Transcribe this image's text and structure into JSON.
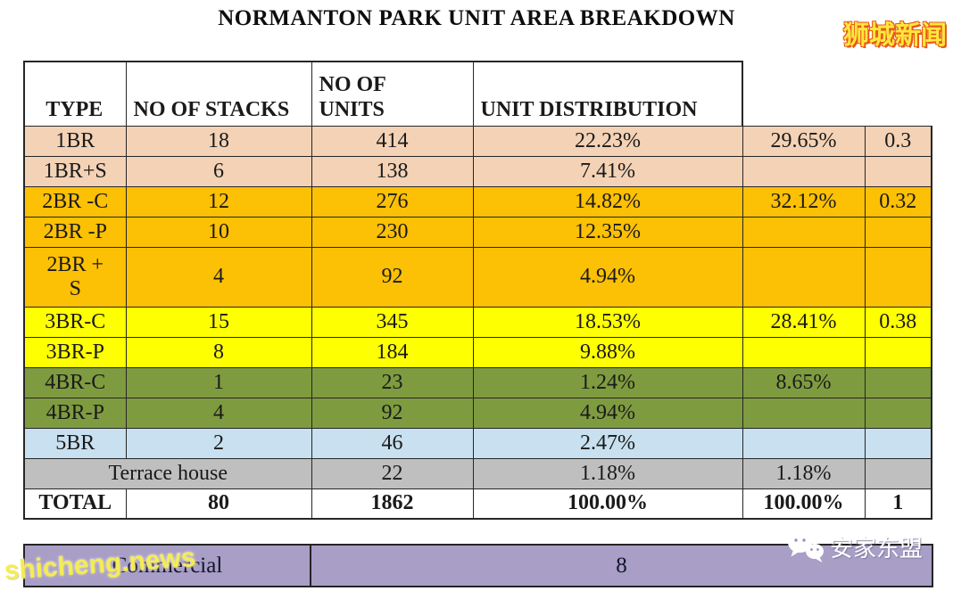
{
  "title": "NORMANTON PARK UNIT AREA BREAKDOWN",
  "colors": {
    "peach": "#f4d2b5",
    "orange": "#fcc004",
    "yellow": "#feff00",
    "green": "#7e9b40",
    "blue": "#c8e0ef",
    "gray": "#c0bfbf",
    "white": "#ffffff",
    "purple": "#a89ec6",
    "border": "#262626",
    "watermark_yellow": "#ffe73c",
    "watermark_red_outline": "#e8571d"
  },
  "table": {
    "headers": {
      "type": "TYPE",
      "stacks": "NO OF STACKS",
      "units": "NO OF\nUNITS",
      "distribution": "UNIT DISTRIBUTION"
    },
    "rows": [
      {
        "cells": [
          "1BR",
          "18",
          "414",
          "22.23%",
          "29.65%",
          "0.3"
        ],
        "color": "peach"
      },
      {
        "cells": [
          "1BR+S",
          "6",
          "138",
          "7.41%",
          "",
          ""
        ],
        "color": "peach"
      },
      {
        "cells": [
          "2BR -C",
          "12",
          "276",
          "14.82%",
          "32.12%",
          "0.32"
        ],
        "color": "orange"
      },
      {
        "cells": [
          "2BR -P",
          "10",
          "230",
          "12.35%",
          "",
          ""
        ],
        "color": "orange"
      },
      {
        "cells": [
          "2BR +\nS",
          "4",
          "92",
          "4.94%",
          "",
          ""
        ],
        "color": "orange",
        "tall": true
      },
      {
        "cells": [
          "3BR-C",
          "15",
          "345",
          "18.53%",
          "28.41%",
          "0.38"
        ],
        "color": "yellow"
      },
      {
        "cells": [
          "3BR-P",
          "8",
          "184",
          "9.88%",
          "",
          ""
        ],
        "color": "yellow"
      },
      {
        "cells": [
          "4BR-C",
          "1",
          "23",
          "1.24%",
          "8.65%",
          ""
        ],
        "color": "green"
      },
      {
        "cells": [
          "4BR-P",
          "4",
          "92",
          "4.94%",
          "",
          ""
        ],
        "color": "green"
      },
      {
        "cells": [
          "5BR",
          "2",
          "46",
          "2.47%",
          "",
          ""
        ],
        "color": "blue"
      },
      {
        "cells": [
          "Terrace house",
          "22",
          "1.18%",
          "1.18%",
          ""
        ],
        "color": "gray",
        "span_first": 2
      },
      {
        "cells": [
          "TOTAL",
          "80",
          "1862",
          "100.00%",
          "100.00%",
          "1"
        ],
        "color": "white",
        "bold": true
      }
    ]
  },
  "commercial": {
    "label": "Commercial",
    "value": "8"
  },
  "watermarks": {
    "top_right": "狮城新闻",
    "bottom_left": "shicheng.news",
    "bottom_right": "安家东盟"
  },
  "chart_data": [
    {
      "type": "table",
      "title": "NORMANTON PARK UNIT AREA BREAKDOWN",
      "columns": [
        "TYPE",
        "NO OF STACKS",
        "NO OF UNITS",
        "UNIT DISTRIBUTION",
        "",
        ""
      ],
      "rows": [
        [
          "1BR",
          18,
          414,
          "22.23%",
          "29.65%",
          0.3
        ],
        [
          "1BR+S",
          6,
          138,
          "7.41%",
          "",
          ""
        ],
        [
          "2BR -C",
          12,
          276,
          "14.82%",
          "32.12%",
          0.32
        ],
        [
          "2BR -P",
          10,
          230,
          "12.35%",
          "",
          ""
        ],
        [
          "2BR + S",
          4,
          92,
          "4.94%",
          "",
          ""
        ],
        [
          "3BR-C",
          15,
          345,
          "18.53%",
          "28.41%",
          0.38
        ],
        [
          "3BR-P",
          8,
          184,
          "9.88%",
          "",
          ""
        ],
        [
          "4BR-C",
          1,
          23,
          "1.24%",
          "8.65%",
          ""
        ],
        [
          "4BR-P",
          4,
          92,
          "4.94%",
          "",
          ""
        ],
        [
          "5BR",
          2,
          46,
          "2.47%",
          "",
          ""
        ],
        [
          "Terrace house",
          "",
          22,
          "1.18%",
          "1.18%",
          ""
        ],
        [
          "TOTAL",
          80,
          1862,
          "100.00%",
          "100.00%",
          1
        ]
      ]
    },
    {
      "type": "table",
      "title": "Commercial",
      "columns": [
        "TYPE",
        "NO OF UNITS"
      ],
      "rows": [
        [
          "Commercial",
          8
        ]
      ]
    }
  ]
}
